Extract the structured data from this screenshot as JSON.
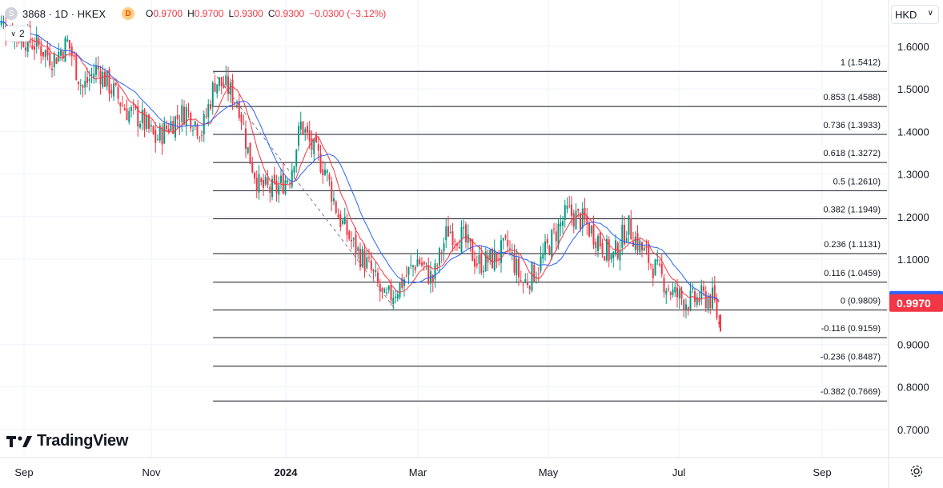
{
  "header": {
    "symbol_icon": "S",
    "symbol": "3868 · 1D · HKEX",
    "d_badge": "D",
    "open_label": "O",
    "open_value": "0.9700",
    "high_label": "H",
    "high_value": "0.9700",
    "low_label": "L",
    "low_value": "0.9300",
    "close_label": "C",
    "close_value": "0.9300",
    "change": "−0.0300 (−3.12%)"
  },
  "indicator_toggle": "2",
  "currency": "HKD",
  "logo_text": "TradingView",
  "icons": {
    "chevron": "chevron-down-icon",
    "settings": "gear-icon",
    "logo": "tradingview-logo"
  },
  "colors": {
    "up": "#089981",
    "down": "#f23645",
    "ma_fast": "#f23645",
    "ma_slow": "#2962ff",
    "grid": "#f0f3fa"
  },
  "chart_data": {
    "type": "candlestick",
    "currency": "HKD",
    "y_ticks": [
      "1.6000",
      "1.5000",
      "1.4000",
      "1.3000",
      "1.2000",
      "1.1000",
      "0.9000",
      "0.8000",
      "0.7000"
    ],
    "ylim": [
      0.655,
      1.66
    ],
    "x_ticks": [
      "Sep",
      "Nov",
      "2024",
      "Mar",
      "May",
      "Jul",
      "Sep"
    ],
    "last_price_labels": [
      {
        "value": 1.0045,
        "text": "1.0045",
        "color": "#2962ff"
      },
      {
        "value": 0.997,
        "text": "0.9970",
        "color": "#f23645"
      }
    ],
    "fib_retracement": {
      "levels": [
        {
          "ratio": "1",
          "price": 1.5412,
          "label": "1 (1.5412)"
        },
        {
          "ratio": "0.853",
          "price": 1.4588,
          "label": "0.853 (1.4588)"
        },
        {
          "ratio": "0.736",
          "price": 1.3933,
          "label": "0.736 (1.3933)"
        },
        {
          "ratio": "0.618",
          "price": 1.3272,
          "label": "0.618 (1.3272)"
        },
        {
          "ratio": "0.5",
          "price": 1.261,
          "label": "0.5 (1.2610)"
        },
        {
          "ratio": "0.382",
          "price": 1.1949,
          "label": "0.382 (1.1949)"
        },
        {
          "ratio": "0.236",
          "price": 1.1131,
          "label": "0.236 (1.1131)"
        },
        {
          "ratio": "0.116",
          "price": 1.0459,
          "label": "0.116 (1.0459)"
        },
        {
          "ratio": "0",
          "price": 0.9809,
          "label": "0 (0.9809)"
        },
        {
          "ratio": "-0.116",
          "price": 0.9159,
          "label": "-0.116 (0.9159)"
        },
        {
          "ratio": "-0.236",
          "price": 0.8487,
          "label": "-0.236 (0.8487)"
        },
        {
          "ratio": "-0.382",
          "price": 0.7669,
          "label": "-0.382 (0.7669)"
        }
      ],
      "trend_from": {
        "date": "2023-11-29",
        "price": 1.5412
      },
      "trend_to": {
        "date": "2024-02-20",
        "price": 0.9809
      }
    },
    "close_series": [
      {
        "date": "2023-08-18",
        "close": 1.66
      },
      {
        "date": "2023-08-25",
        "close": 1.64
      },
      {
        "date": "2023-09-01",
        "close": 1.62
      },
      {
        "date": "2023-09-08",
        "close": 1.6
      },
      {
        "date": "2023-09-15",
        "close": 1.57
      },
      {
        "date": "2023-09-22",
        "close": 1.61
      },
      {
        "date": "2023-09-29",
        "close": 1.5
      },
      {
        "date": "2023-10-06",
        "close": 1.55
      },
      {
        "date": "2023-10-13",
        "close": 1.5
      },
      {
        "date": "2023-10-20",
        "close": 1.45
      },
      {
        "date": "2023-10-27",
        "close": 1.43
      },
      {
        "date": "2023-11-03",
        "close": 1.38
      },
      {
        "date": "2023-11-10",
        "close": 1.42
      },
      {
        "date": "2023-11-17",
        "close": 1.45
      },
      {
        "date": "2023-11-24",
        "close": 1.4
      },
      {
        "date": "2023-11-30",
        "close": 1.52
      },
      {
        "date": "2023-12-06",
        "close": 1.5
      },
      {
        "date": "2023-12-11",
        "close": 1.46
      },
      {
        "date": "2023-12-15",
        "close": 1.35
      },
      {
        "date": "2023-12-20",
        "close": 1.27
      },
      {
        "date": "2023-12-27",
        "close": 1.26
      },
      {
        "date": "2024-01-03",
        "close": 1.3
      },
      {
        "date": "2024-01-08",
        "close": 1.42
      },
      {
        "date": "2024-01-12",
        "close": 1.37
      },
      {
        "date": "2024-01-19",
        "close": 1.31
      },
      {
        "date": "2024-01-25",
        "close": 1.2
      },
      {
        "date": "2024-02-01",
        "close": 1.13
      },
      {
        "date": "2024-02-08",
        "close": 1.08
      },
      {
        "date": "2024-02-15",
        "close": 1.0
      },
      {
        "date": "2024-02-22",
        "close": 1.04
      },
      {
        "date": "2024-03-01",
        "close": 1.1
      },
      {
        "date": "2024-03-08",
        "close": 1.05
      },
      {
        "date": "2024-03-15",
        "close": 1.17
      },
      {
        "date": "2024-03-22",
        "close": 1.15
      },
      {
        "date": "2024-03-29",
        "close": 1.09
      },
      {
        "date": "2024-04-05",
        "close": 1.1
      },
      {
        "date": "2024-04-12",
        "close": 1.13
      },
      {
        "date": "2024-04-19",
        "close": 1.04
      },
      {
        "date": "2024-04-26",
        "close": 1.08
      },
      {
        "date": "2024-05-03",
        "close": 1.15
      },
      {
        "date": "2024-05-10",
        "close": 1.21
      },
      {
        "date": "2024-05-17",
        "close": 1.19
      },
      {
        "date": "2024-05-24",
        "close": 1.15
      },
      {
        "date": "2024-05-31",
        "close": 1.1
      },
      {
        "date": "2024-06-07",
        "close": 1.18
      },
      {
        "date": "2024-06-14",
        "close": 1.12
      },
      {
        "date": "2024-06-21",
        "close": 1.07
      },
      {
        "date": "2024-06-28",
        "close": 1.02
      },
      {
        "date": "2024-07-05",
        "close": 1.0
      },
      {
        "date": "2024-07-11",
        "close": 1.01
      },
      {
        "date": "2024-07-16",
        "close": 1.005
      },
      {
        "date": "2024-07-19",
        "close": 0.93
      }
    ]
  }
}
